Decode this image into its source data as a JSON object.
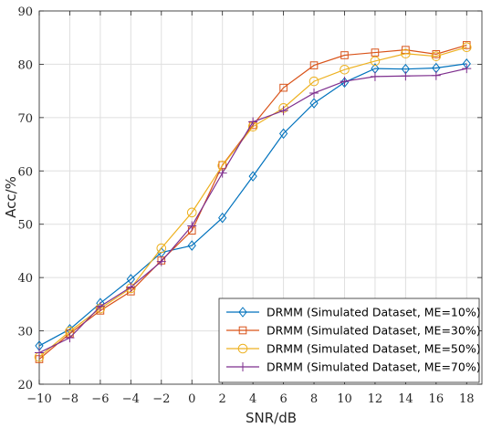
{
  "chart_data": {
    "type": "line",
    "xlabel": "SNR/dB",
    "ylabel": "Acc/%",
    "xlim": [
      -10,
      19
    ],
    "ylim": [
      20,
      90
    ],
    "x_ticks": [
      -10,
      -8,
      -6,
      -4,
      -2,
      0,
      2,
      4,
      6,
      8,
      10,
      12,
      14,
      16,
      18
    ],
    "x_tick_labels": [
      "−10",
      "−8",
      "−6",
      "−4",
      "−2",
      "0",
      "2",
      "4",
      "6",
      "8",
      "10",
      "12",
      "14",
      "16",
      "18"
    ],
    "y_ticks": [
      20,
      30,
      40,
      50,
      60,
      70,
      80,
      90
    ],
    "y_tick_labels": [
      "20",
      "30",
      "40",
      "50",
      "60",
      "70",
      "80",
      "90"
    ],
    "grid": true,
    "legend_position": "bottom-right",
    "x": [
      -10,
      -8,
      -6,
      -4,
      -2,
      0,
      2,
      4,
      6,
      8,
      10,
      12,
      14,
      16,
      18
    ],
    "series": [
      {
        "name": "DRMM (Simulated Dataset, ME=10%)",
        "color": "#0072BD",
        "marker": "diamond",
        "values": [
          27.2,
          30.3,
          35.2,
          39.7,
          44.7,
          46.0,
          51.2,
          59.0,
          67.0,
          72.7,
          76.6,
          79.2,
          79.1,
          79.3,
          80.1
        ]
      },
      {
        "name": "DRMM (Simulated Dataset, ME=30%)",
        "color": "#D95319",
        "marker": "square",
        "values": [
          24.7,
          29.5,
          33.8,
          37.4,
          43.2,
          48.8,
          61.1,
          68.6,
          75.6,
          79.8,
          81.7,
          82.2,
          82.7,
          81.9,
          83.6
        ]
      },
      {
        "name": "DRMM (Simulated Dataset, ME=50%)",
        "color": "#EDB120",
        "marker": "circle",
        "values": [
          25.1,
          29.9,
          34.2,
          38.0,
          45.5,
          52.2,
          61.0,
          68.3,
          71.8,
          76.8,
          79.0,
          80.6,
          82.0,
          81.5,
          83.2
        ]
      },
      {
        "name": "DRMM (Simulated Dataset, ME=70%)",
        "color": "#7E2F8E",
        "marker": "plus",
        "values": [
          25.9,
          28.7,
          34.6,
          38.2,
          43.0,
          49.7,
          59.6,
          69.2,
          71.3,
          74.6,
          76.8,
          77.7,
          77.8,
          77.9,
          79.2
        ]
      }
    ]
  }
}
